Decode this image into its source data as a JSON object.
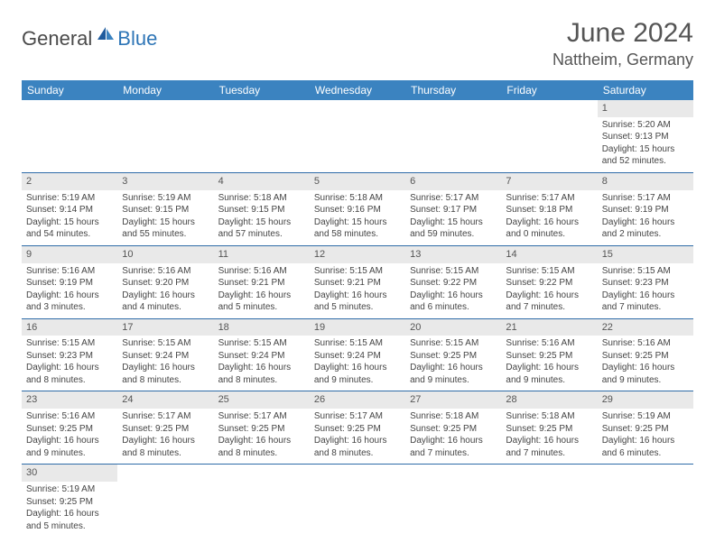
{
  "logo": {
    "dark": "General",
    "blue": "Blue"
  },
  "title": "June 2024",
  "location": "Nattheim, Germany",
  "colors": {
    "header_bg": "#3b83c0",
    "header_text": "#ffffff",
    "daynum_bg": "#e9e9e9",
    "border": "#2e6ca8",
    "text": "#444444",
    "title_text": "#555555",
    "logo_blue": "#2e75b6"
  },
  "columns": [
    "Sunday",
    "Monday",
    "Tuesday",
    "Wednesday",
    "Thursday",
    "Friday",
    "Saturday"
  ],
  "weeks": [
    [
      null,
      null,
      null,
      null,
      null,
      null,
      {
        "n": "1",
        "sr": "Sunrise: 5:20 AM",
        "ss": "Sunset: 9:13 PM",
        "dl": "Daylight: 15 hours and 52 minutes."
      }
    ],
    [
      {
        "n": "2",
        "sr": "Sunrise: 5:19 AM",
        "ss": "Sunset: 9:14 PM",
        "dl": "Daylight: 15 hours and 54 minutes."
      },
      {
        "n": "3",
        "sr": "Sunrise: 5:19 AM",
        "ss": "Sunset: 9:15 PM",
        "dl": "Daylight: 15 hours and 55 minutes."
      },
      {
        "n": "4",
        "sr": "Sunrise: 5:18 AM",
        "ss": "Sunset: 9:15 PM",
        "dl": "Daylight: 15 hours and 57 minutes."
      },
      {
        "n": "5",
        "sr": "Sunrise: 5:18 AM",
        "ss": "Sunset: 9:16 PM",
        "dl": "Daylight: 15 hours and 58 minutes."
      },
      {
        "n": "6",
        "sr": "Sunrise: 5:17 AM",
        "ss": "Sunset: 9:17 PM",
        "dl": "Daylight: 15 hours and 59 minutes."
      },
      {
        "n": "7",
        "sr": "Sunrise: 5:17 AM",
        "ss": "Sunset: 9:18 PM",
        "dl": "Daylight: 16 hours and 0 minutes."
      },
      {
        "n": "8",
        "sr": "Sunrise: 5:17 AM",
        "ss": "Sunset: 9:19 PM",
        "dl": "Daylight: 16 hours and 2 minutes."
      }
    ],
    [
      {
        "n": "9",
        "sr": "Sunrise: 5:16 AM",
        "ss": "Sunset: 9:19 PM",
        "dl": "Daylight: 16 hours and 3 minutes."
      },
      {
        "n": "10",
        "sr": "Sunrise: 5:16 AM",
        "ss": "Sunset: 9:20 PM",
        "dl": "Daylight: 16 hours and 4 minutes."
      },
      {
        "n": "11",
        "sr": "Sunrise: 5:16 AM",
        "ss": "Sunset: 9:21 PM",
        "dl": "Daylight: 16 hours and 5 minutes."
      },
      {
        "n": "12",
        "sr": "Sunrise: 5:15 AM",
        "ss": "Sunset: 9:21 PM",
        "dl": "Daylight: 16 hours and 5 minutes."
      },
      {
        "n": "13",
        "sr": "Sunrise: 5:15 AM",
        "ss": "Sunset: 9:22 PM",
        "dl": "Daylight: 16 hours and 6 minutes."
      },
      {
        "n": "14",
        "sr": "Sunrise: 5:15 AM",
        "ss": "Sunset: 9:22 PM",
        "dl": "Daylight: 16 hours and 7 minutes."
      },
      {
        "n": "15",
        "sr": "Sunrise: 5:15 AM",
        "ss": "Sunset: 9:23 PM",
        "dl": "Daylight: 16 hours and 7 minutes."
      }
    ],
    [
      {
        "n": "16",
        "sr": "Sunrise: 5:15 AM",
        "ss": "Sunset: 9:23 PM",
        "dl": "Daylight: 16 hours and 8 minutes."
      },
      {
        "n": "17",
        "sr": "Sunrise: 5:15 AM",
        "ss": "Sunset: 9:24 PM",
        "dl": "Daylight: 16 hours and 8 minutes."
      },
      {
        "n": "18",
        "sr": "Sunrise: 5:15 AM",
        "ss": "Sunset: 9:24 PM",
        "dl": "Daylight: 16 hours and 8 minutes."
      },
      {
        "n": "19",
        "sr": "Sunrise: 5:15 AM",
        "ss": "Sunset: 9:24 PM",
        "dl": "Daylight: 16 hours and 9 minutes."
      },
      {
        "n": "20",
        "sr": "Sunrise: 5:15 AM",
        "ss": "Sunset: 9:25 PM",
        "dl": "Daylight: 16 hours and 9 minutes."
      },
      {
        "n": "21",
        "sr": "Sunrise: 5:16 AM",
        "ss": "Sunset: 9:25 PM",
        "dl": "Daylight: 16 hours and 9 minutes."
      },
      {
        "n": "22",
        "sr": "Sunrise: 5:16 AM",
        "ss": "Sunset: 9:25 PM",
        "dl": "Daylight: 16 hours and 9 minutes."
      }
    ],
    [
      {
        "n": "23",
        "sr": "Sunrise: 5:16 AM",
        "ss": "Sunset: 9:25 PM",
        "dl": "Daylight: 16 hours and 9 minutes."
      },
      {
        "n": "24",
        "sr": "Sunrise: 5:17 AM",
        "ss": "Sunset: 9:25 PM",
        "dl": "Daylight: 16 hours and 8 minutes."
      },
      {
        "n": "25",
        "sr": "Sunrise: 5:17 AM",
        "ss": "Sunset: 9:25 PM",
        "dl": "Daylight: 16 hours and 8 minutes."
      },
      {
        "n": "26",
        "sr": "Sunrise: 5:17 AM",
        "ss": "Sunset: 9:25 PM",
        "dl": "Daylight: 16 hours and 8 minutes."
      },
      {
        "n": "27",
        "sr": "Sunrise: 5:18 AM",
        "ss": "Sunset: 9:25 PM",
        "dl": "Daylight: 16 hours and 7 minutes."
      },
      {
        "n": "28",
        "sr": "Sunrise: 5:18 AM",
        "ss": "Sunset: 9:25 PM",
        "dl": "Daylight: 16 hours and 7 minutes."
      },
      {
        "n": "29",
        "sr": "Sunrise: 5:19 AM",
        "ss": "Sunset: 9:25 PM",
        "dl": "Daylight: 16 hours and 6 minutes."
      }
    ],
    [
      {
        "n": "30",
        "sr": "Sunrise: 5:19 AM",
        "ss": "Sunset: 9:25 PM",
        "dl": "Daylight: 16 hours and 5 minutes."
      },
      null,
      null,
      null,
      null,
      null,
      null
    ]
  ]
}
